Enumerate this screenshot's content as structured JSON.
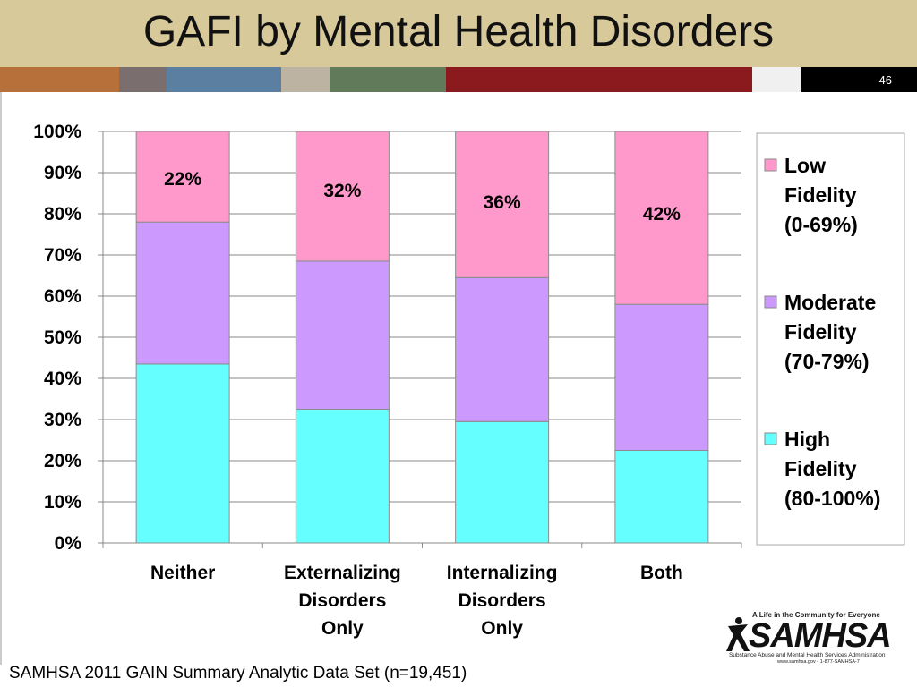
{
  "slide": {
    "title": "GAFI by Mental Health Disorders",
    "page_number": "46",
    "source_note": "SAMHSA 2011 GAIN Summary Analytic Data Set (n=19,451)",
    "stripe_colors": [
      "#b8703a",
      "#7a6e6e",
      "#5a7fa0",
      "#bdb3a3",
      "#607a5a",
      "#8a1a1e",
      "#f0f0f0",
      "#000000"
    ],
    "colors": {
      "title_band": "#d8c99a",
      "page_text": "#ffffff"
    }
  },
  "logo": {
    "tagline": "A Life in the Community for Everyone",
    "wordmark": "SAMHSA",
    "subtitle": "Substance Abuse and Mental Health Services Administration",
    "contact": "www.samhsa.gov • 1-877-SAMHSA-7"
  },
  "chart_data": {
    "type": "bar",
    "stacked": true,
    "percent": true,
    "categories": [
      "Neither",
      "Externalizing Disorders Only",
      "Internalizing Disorders Only",
      "Both"
    ],
    "series": [
      {
        "name": "High Fidelity (80-100%)",
        "color": "#66ffff",
        "values": [
          43.5,
          32.5,
          29.5,
          22.5
        ]
      },
      {
        "name": "Moderate Fidelity (70-79%)",
        "color": "#cc99ff",
        "values": [
          34.5,
          36,
          35,
          35.5
        ]
      },
      {
        "name": "Low Fidelity (0-69%)",
        "color": "#ff99cc",
        "values": [
          22,
          31.5,
          35.5,
          42
        ]
      }
    ],
    "data_labels": [
      "22%",
      "32%",
      "36%",
      "42%"
    ],
    "ylim": [
      0,
      100
    ],
    "yticks": [
      "0%",
      "10%",
      "20%",
      "30%",
      "40%",
      "50%",
      "60%",
      "70%",
      "80%",
      "90%",
      "100%"
    ],
    "legend": {
      "position": "right",
      "entries": [
        {
          "lines": [
            "Low",
            "Fidelity",
            "(0-69%)"
          ],
          "color": "#ff99cc"
        },
        {
          "lines": [
            "Moderate",
            "Fidelity",
            "(70-79%)"
          ],
          "color": "#cc99ff"
        },
        {
          "lines": [
            "High",
            "Fidelity",
            "(80-100%)"
          ],
          "color": "#66ffff"
        }
      ]
    },
    "category_label_lines": [
      [
        "Neither"
      ],
      [
        "Externalizing",
        "Disorders",
        "Only"
      ],
      [
        "Internalizing",
        "Disorders",
        "Only"
      ],
      [
        "Both"
      ]
    ],
    "grid": true
  }
}
